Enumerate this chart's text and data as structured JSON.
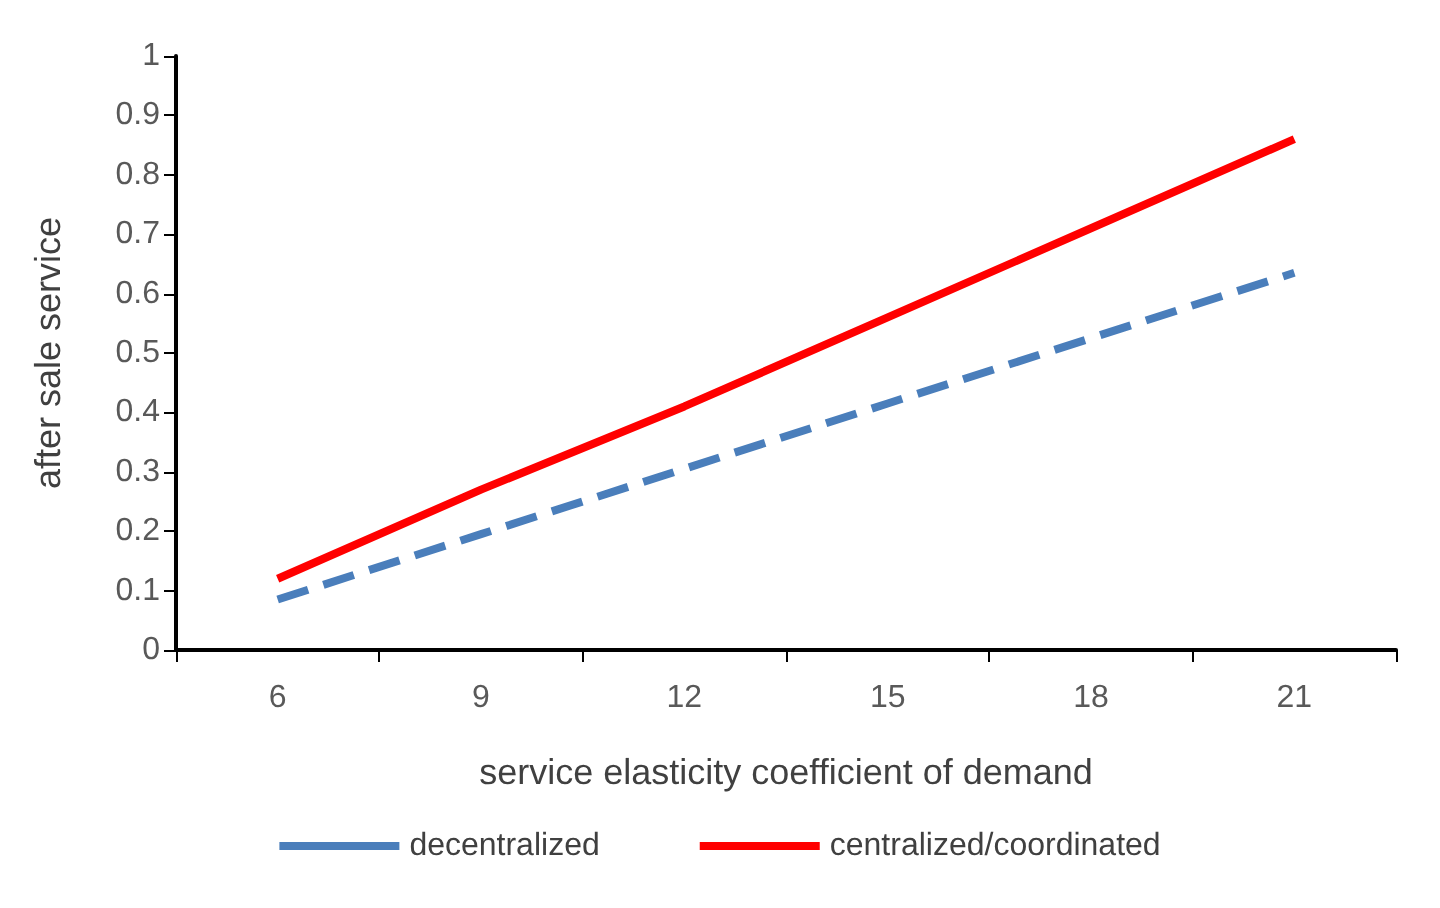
{
  "chart_data": {
    "type": "line",
    "xlabel": "service elasticity coefficient of demand",
    "ylabel": "after sale service",
    "categories": [
      "6",
      "9",
      "12",
      "15",
      "18",
      "21"
    ],
    "series": [
      {
        "name": "decentralized",
        "color": "#4a7ebb",
        "line_style": "dashed",
        "values": [
          0.085,
          0.195,
          0.305,
          0.415,
          0.525,
          0.635
        ]
      },
      {
        "name": "centralized/coordinated",
        "color": "#ff0000",
        "line_style": "solid",
        "values": [
          0.12,
          0.27,
          0.41,
          0.56,
          0.71,
          0.86
        ]
      }
    ],
    "ylim": [
      0,
      1
    ],
    "yticks": [
      0,
      0.1,
      0.2,
      0.3,
      0.4,
      0.5,
      0.6,
      0.7,
      0.8,
      0.9,
      1
    ],
    "grid": false,
    "legend": "bottom",
    "marker": "none"
  }
}
